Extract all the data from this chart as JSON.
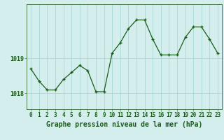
{
  "title": "Graphe pression niveau de la mer (hPa)",
  "x_values": [
    0,
    1,
    2,
    3,
    4,
    5,
    6,
    7,
    8,
    9,
    10,
    11,
    12,
    13,
    14,
    15,
    16,
    17,
    18,
    19,
    20,
    21,
    22,
    23
  ],
  "y_values": [
    1018.7,
    1018.35,
    1018.1,
    1018.1,
    1018.4,
    1018.6,
    1018.8,
    1018.65,
    1018.05,
    1018.05,
    1019.15,
    1019.45,
    1019.85,
    1020.1,
    1020.1,
    1019.55,
    1019.1,
    1019.1,
    1019.1,
    1019.6,
    1019.9,
    1019.9,
    1019.55,
    1019.15
  ],
  "line_color": "#1a5c1a",
  "marker_color": "#1a5c1a",
  "bg_color": "#d4eeed",
  "grid_color": "#a8d8d4",
  "axis_color": "#4a7a4a",
  "tick_color": "#1a5c1a",
  "label_color": "#1a5c1a",
  "ytick_labels": [
    "1018",
    "1019"
  ],
  "ytick_values": [
    1018,
    1019
  ],
  "ylim": [
    1017.55,
    1020.55
  ],
  "xlim": [
    -0.5,
    23.5
  ],
  "title_fontsize": 7,
  "tick_fontsize": 5.5
}
